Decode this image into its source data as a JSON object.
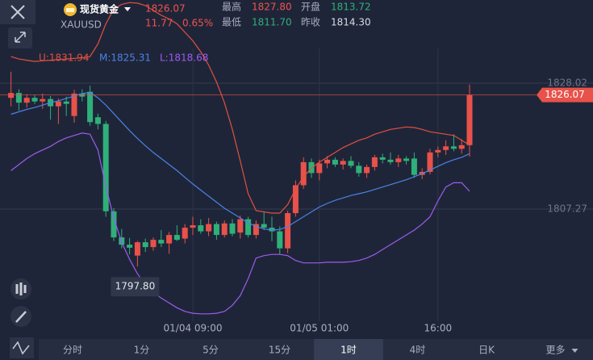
{
  "header": {
    "name": "现货黄金",
    "symbol": "XAUUSD",
    "price": "1826.07",
    "change": "11.77",
    "change_pct": "0.65%",
    "stats": [
      {
        "label": "最高",
        "value": "1827.80"
      },
      {
        "label": "开盘",
        "value": "1813.72"
      },
      {
        "label": "最低",
        "value": "1811.70"
      },
      {
        "label": "昨收",
        "value": "1814.30"
      }
    ]
  },
  "chart_data": {
    "type": "candlestick",
    "categories": [
      null,
      null,
      null,
      null,
      null,
      null,
      null,
      null,
      null,
      null,
      null,
      null,
      null,
      null,
      null,
      null,
      null,
      null,
      null,
      null,
      null,
      null,
      null,
      "01/04 09:00",
      null,
      null,
      null,
      null,
      null,
      null,
      null,
      null,
      null,
      null,
      null,
      null,
      null,
      null,
      null,
      "01/05 01:00",
      null,
      null,
      null,
      null,
      null,
      null,
      null,
      null,
      null,
      null,
      null,
      null,
      null,
      null,
      "16:00",
      null,
      null,
      null,
      null
    ],
    "open": [
      1825.6,
      1826.4,
      1824.8,
      1825.6,
      1825.0,
      1825.4,
      1824.2,
      1825.0,
      1822.6,
      1826.3,
      1826.6,
      1822.4,
      1821.3,
      1806.9,
      1802.6,
      1801.4,
      1799.6,
      1801.8,
      1801.0,
      1802.2,
      1801.6,
      1803.0,
      1802.4,
      1804.2,
      1804.6,
      1803.6,
      1804.8,
      1803.0,
      1804.9,
      1803.4,
      1805.6,
      1803.0,
      1804.8,
      1804.2,
      1803.6,
      1800.8,
      1806.6,
      1811.2,
      1815.0,
      1813.2,
      1814.8,
      1815.4,
      1814.6,
      1815.2,
      1814.4,
      1813.2,
      1814.2,
      1815.8,
      1815.4,
      1815.0,
      1815.6,
      1815.6,
      1812.9,
      1813.4,
      1816.6,
      1817.0,
      1817.6,
      1817.2,
      1817.8
    ],
    "high": [
      1829.9,
      1827.0,
      1826.2,
      1826.1,
      1826.3,
      1825.9,
      1825.5,
      1825.8,
      1826.9,
      1827.0,
      1827.6,
      1823.0,
      1821.8,
      1807.4,
      1804.0,
      1802.5,
      1802.0,
      1802.4,
      1802.6,
      1803.8,
      1803.5,
      1804.6,
      1804.8,
      1806.0,
      1805.6,
      1805.8,
      1805.2,
      1805.4,
      1805.6,
      1806.2,
      1806.0,
      1805.4,
      1806.8,
      1806.0,
      1804.4,
      1807.0,
      1812.0,
      1815.8,
      1815.6,
      1815.4,
      1816.0,
      1815.8,
      1815.6,
      1816.0,
      1815.0,
      1814.6,
      1816.2,
      1816.4,
      1816.6,
      1816.2,
      1816.0,
      1816.6,
      1814.0,
      1817.2,
      1817.6,
      1818.6,
      1819.6,
      1818.8,
      1827.8
    ],
    "low": [
      1824.2,
      1823.5,
      1824.0,
      1824.6,
      1823.8,
      1822.0,
      1821.3,
      1822.6,
      1821.5,
      1825.0,
      1821.0,
      1820.4,
      1806.0,
      1802.0,
      1800.8,
      1799.8,
      1797.8,
      1800.2,
      1800.4,
      1801.0,
      1799.9,
      1802.0,
      1801.6,
      1803.0,
      1803.2,
      1802.8,
      1802.2,
      1802.6,
      1802.8,
      1802.4,
      1802.6,
      1802.4,
      1803.8,
      1802.0,
      1799.8,
      1800.0,
      1806.0,
      1810.6,
      1812.4,
      1812.0,
      1814.0,
      1814.2,
      1813.8,
      1814.0,
      1812.6,
      1812.4,
      1813.6,
      1814.8,
      1814.6,
      1814.2,
      1814.6,
      1812.4,
      1812.2,
      1813.0,
      1815.8,
      1816.2,
      1816.8,
      1816.4,
      1815.9
    ],
    "close": [
      1826.4,
      1824.8,
      1825.6,
      1825.0,
      1825.4,
      1824.2,
      1825.0,
      1824.6,
      1826.3,
      1825.8,
      1821.6,
      1821.3,
      1806.9,
      1802.6,
      1801.4,
      1800.9,
      1801.8,
      1801.0,
      1802.2,
      1801.6,
      1803.0,
      1802.2,
      1804.2,
      1804.6,
      1803.6,
      1804.8,
      1803.0,
      1804.9,
      1803.2,
      1805.6,
      1803.0,
      1804.8,
      1804.2,
      1803.6,
      1800.8,
      1806.6,
      1811.2,
      1815.0,
      1813.2,
      1814.8,
      1815.4,
      1814.6,
      1815.2,
      1814.4,
      1813.2,
      1814.2,
      1815.8,
      1815.4,
      1815.0,
      1815.6,
      1815.2,
      1812.9,
      1813.4,
      1816.6,
      1817.0,
      1817.6,
      1817.2,
      1817.8,
      1826.07
    ],
    "up_color": "#e8524a",
    "down_color": "#2fb07a",
    "series": [
      {
        "name": "U:1831.94",
        "color": "#e0513f",
        "values": [
          1832.4,
          1832.0,
          1831.8,
          1831.6,
          1831.7,
          1831.8,
          1831.9,
          1832.0,
          1832.1,
          1832.2,
          1832.4,
          1834.5,
          1837.8,
          1840.2,
          1841.0,
          1841.3,
          1841.2,
          1840.8,
          1840.0,
          1839.2,
          1838.6,
          1837.8,
          1836.4,
          1835.0,
          1833.2,
          1831.0,
          1828.2,
          1824.8,
          1820.4,
          1815.2,
          1809.8,
          1807.0,
          1806.8,
          1806.6,
          1806.6,
          1808.0,
          1810.6,
          1812.6,
          1814.0,
          1815.0,
          1815.8,
          1816.6,
          1817.4,
          1818.0,
          1818.6,
          1819.0,
          1819.6,
          1820.0,
          1820.4,
          1820.6,
          1820.8,
          1820.7,
          1820.4,
          1820.0,
          1819.8,
          1819.6,
          1819.4,
          1818.6,
          1817.8
        ]
      },
      {
        "name": "M:1825.31",
        "color": "#4b82e6",
        "values": [
          1822.9,
          1823.3,
          1823.7,
          1824.0,
          1824.4,
          1824.8,
          1825.1,
          1825.5,
          1825.9,
          1826.3,
          1826.5,
          1825.6,
          1824.4,
          1823.0,
          1821.6,
          1820.2,
          1818.9,
          1817.7,
          1816.6,
          1815.6,
          1814.6,
          1813.6,
          1812.5,
          1811.4,
          1810.4,
          1809.4,
          1808.4,
          1807.4,
          1806.6,
          1805.8,
          1805.0,
          1804.4,
          1804.0,
          1803.8,
          1803.9,
          1804.4,
          1805.2,
          1806.0,
          1806.8,
          1807.6,
          1808.2,
          1808.7,
          1809.1,
          1809.5,
          1809.8,
          1810.1,
          1810.5,
          1810.9,
          1811.3,
          1811.7,
          1812.1,
          1812.6,
          1813.1,
          1813.7,
          1814.3,
          1814.9,
          1815.4,
          1815.8,
          1816.4
        ]
      },
      {
        "name": "L:1818.68",
        "color": "#9b5cf0",
        "values": [
          1813.6,
          1814.6,
          1815.6,
          1816.4,
          1817.0,
          1817.6,
          1818.4,
          1819.0,
          1819.4,
          1819.8,
          1819.6,
          1817.0,
          1811.0,
          1805.8,
          1801.8,
          1799.0,
          1796.6,
          1794.8,
          1793.6,
          1792.6,
          1791.8,
          1791.0,
          1790.4,
          1790.1,
          1790.0,
          1790.0,
          1790.1,
          1790.4,
          1791.4,
          1793.0,
          1795.8,
          1799.2,
          1799.6,
          1799.8,
          1799.8,
          1799.6,
          1798.8,
          1798.4,
          1798.4,
          1798.4,
          1798.5,
          1798.5,
          1798.5,
          1798.6,
          1798.8,
          1799.2,
          1799.8,
          1800.6,
          1801.4,
          1802.2,
          1803.0,
          1803.8,
          1804.8,
          1806.0,
          1808.6,
          1810.9,
          1811.6,
          1811.6,
          1810.2
        ]
      }
    ],
    "ylim": [
      1786.12,
      1841.72
    ],
    "yticks": [
      1828.02,
      1807.27
    ],
    "grid": true,
    "last_price": 1826.07,
    "annotation": {
      "value": 1797.8,
      "label": "1797.80"
    }
  },
  "tabs": {
    "items": [
      "分时",
      "1分",
      "5分",
      "15分",
      "1时",
      "4时",
      "日K",
      "更多"
    ],
    "selected": 4
  }
}
